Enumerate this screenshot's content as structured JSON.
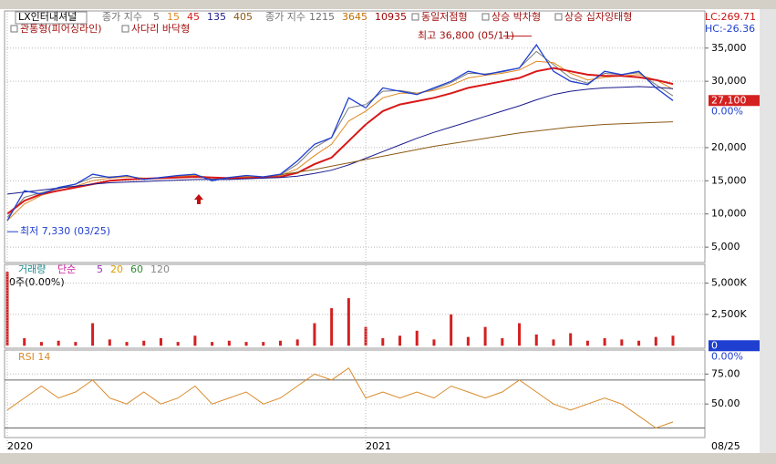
{
  "chart_data": [
    {
      "type": "line",
      "title": "LX인터내셔널",
      "ma_prefix": "종가 지수",
      "categories": [
        "2020",
        null,
        null,
        null,
        null,
        null,
        null,
        null,
        null,
        null,
        null,
        null,
        null,
        null,
        null,
        null,
        null,
        null,
        null,
        null,
        null,
        "2021",
        null,
        null,
        null,
        null,
        null,
        null,
        null,
        null,
        null,
        null,
        null,
        null,
        null,
        null,
        null,
        null,
        null,
        null
      ],
      "price": {
        "color": "#1f3fd1",
        "values": [
          9000,
          13500,
          13000,
          14000,
          14500,
          16000,
          15500,
          15800,
          15200,
          15500,
          15800,
          16000,
          15000,
          15500,
          15800,
          15600,
          16000,
          18000,
          20500,
          21500,
          27500,
          26000,
          29000,
          28500,
          28000,
          29000,
          30000,
          31500,
          31000,
          31500,
          32000,
          35500,
          31500,
          30000,
          29500,
          31500,
          31000,
          31500,
          29000,
          27100
        ]
      },
      "series": [
        {
          "name": "5",
          "color": "#7a7a7a",
          "values": [
            9500,
            12500,
            13200,
            13800,
            14500,
            15500,
            15600,
            15700,
            15300,
            15500,
            15700,
            15900,
            15200,
            15400,
            15700,
            15600,
            15900,
            17500,
            20000,
            21500,
            26000,
            26500,
            28500,
            28600,
            28200,
            28800,
            29800,
            31200,
            31100,
            31400,
            32000,
            34500,
            32500,
            30500,
            29700,
            31200,
            31000,
            31300,
            29500,
            27800
          ]
        },
        {
          "name": "15",
          "color": "#e08a20",
          "values": [
            9000,
            11500,
            12800,
            13500,
            14200,
            15000,
            15400,
            15600,
            15400,
            15400,
            15600,
            15800,
            15500,
            15400,
            15600,
            15600,
            15800,
            16800,
            18800,
            20500,
            24000,
            25500,
            27500,
            28200,
            28200,
            28600,
            29400,
            30500,
            30900,
            31200,
            31700,
            33000,
            32800,
            31200,
            30200,
            30600,
            30800,
            31000,
            30200,
            28800
          ]
        },
        {
          "name": "45",
          "color": "#d81818",
          "values": [
            10000,
            12000,
            13000,
            13500,
            14000,
            14500,
            15000,
            15200,
            15300,
            15400,
            15500,
            15600,
            15500,
            15400,
            15400,
            15500,
            15600,
            16200,
            17500,
            18500,
            21000,
            23500,
            25500,
            26500,
            27000,
            27500,
            28200,
            29000,
            29500,
            30000,
            30500,
            31500,
            32000,
            31500,
            31000,
            30800,
            30800,
            30600,
            30200,
            29600
          ]
        },
        {
          "name": "135",
          "color": "#1a1a8c",
          "values": [
            13000,
            13300,
            13600,
            13900,
            14200,
            14500,
            14700,
            14800,
            14900,
            15000,
            15100,
            15200,
            15200,
            15200,
            15300,
            15400,
            15500,
            15700,
            16100,
            16600,
            17400,
            18400,
            19400,
            20400,
            21400,
            22300,
            23100,
            23900,
            24700,
            25500,
            26300,
            27200,
            28000,
            28500,
            28800,
            29000,
            29100,
            29200,
            29100,
            28900
          ]
        },
        {
          "name": "405",
          "color": "#8b5a14",
          "values": [
            null,
            null,
            null,
            null,
            null,
            null,
            null,
            null,
            null,
            null,
            null,
            null,
            null,
            null,
            null,
            15600,
            15900,
            16300,
            16700,
            17200,
            17700,
            18200,
            18700,
            19200,
            19700,
            20200,
            20600,
            21000,
            21400,
            21800,
            22200,
            22500,
            22800,
            23100,
            23300,
            23500,
            23600,
            23700,
            23800,
            23900
          ]
        }
      ],
      "ma_prefix2": "종가 지수",
      "long_ma": [
        {
          "name": "1215",
          "color": "#707070"
        },
        {
          "name": "3645",
          "color": "#c07000"
        },
        {
          "name": "10935",
          "color": "#a00000"
        }
      ],
      "patterns": [
        "동일저점형",
        "상승 박차형",
        "상승 십자잉태형",
        "관통형(피어싱라인)",
        "사다리 바닥형"
      ],
      "annotations": [
        {
          "text": "최고 36,800 (05/11)",
          "value": 36800
        },
        {
          "text": "최저 7,330 (03/25)",
          "value": 7330
        }
      ],
      "lc_label": "LC:269.71",
      "hc_label": "HC:-26.36",
      "last": {
        "value": 27100,
        "label": "27,100"
      },
      "change_label": "0.00%",
      "ylim": [
        2680,
        40600
      ],
      "yticks": [
        {
          "value": 5000,
          "label": "5,000"
        },
        {
          "value": 10000,
          "label": "10,000"
        },
        {
          "value": 15000,
          "label": "15,000"
        },
        {
          "value": 20000,
          "label": "20,000"
        },
        {
          "value": 30000,
          "label": "30,000"
        },
        {
          "value": 35000,
          "label": "35,000"
        }
      ],
      "grid": true
    },
    {
      "type": "bar",
      "title": "거래량",
      "ma_prefix": "단순",
      "info": "0주(0.00%)",
      "ma_legend": [
        {
          "name": "5",
          "color": "#9b30c0"
        },
        {
          "name": "20",
          "color": "#e0a000"
        },
        {
          "name": "60",
          "color": "#2e8b2e"
        },
        {
          "name": "120",
          "color": "#888888"
        }
      ],
      "color": "#d42020",
      "values": [
        5900,
        600,
        300,
        400,
        300,
        1800,
        500,
        300,
        400,
        600,
        300,
        800,
        300,
        400,
        300,
        300,
        400,
        500,
        1800,
        3000,
        3800,
        1500,
        600,
        800,
        1200,
        500,
        2500,
        700,
        1500,
        600,
        1800,
        900,
        500,
        1000,
        400,
        600,
        500,
        400,
        700,
        800
      ],
      "last": {
        "value": 0,
        "label": "0"
      },
      "change_label": "0.00%",
      "ylim": [
        -200,
        6500
      ],
      "yticks": [
        {
          "value": 5000,
          "label": "5,000K"
        },
        {
          "value": 2500,
          "label": "2,500K"
        }
      ],
      "grid": true
    },
    {
      "type": "line",
      "title": "RSI 14",
      "color": "#d98a2a",
      "values": [
        45,
        55,
        65,
        55,
        60,
        70,
        55,
        50,
        60,
        50,
        55,
        65,
        50,
        55,
        60,
        50,
        55,
        65,
        75,
        70,
        80,
        55,
        60,
        55,
        60,
        55,
        65,
        60,
        55,
        60,
        70,
        60,
        50,
        45,
        50,
        55,
        50,
        40,
        30,
        35
      ],
      "levels": [
        70,
        30
      ],
      "ylim": [
        22,
        95
      ],
      "yticks": [
        {
          "value": 75,
          "label": "75.00"
        },
        {
          "value": 50,
          "label": "50.00"
        }
      ],
      "grid": true
    }
  ],
  "date_label": "08/25"
}
